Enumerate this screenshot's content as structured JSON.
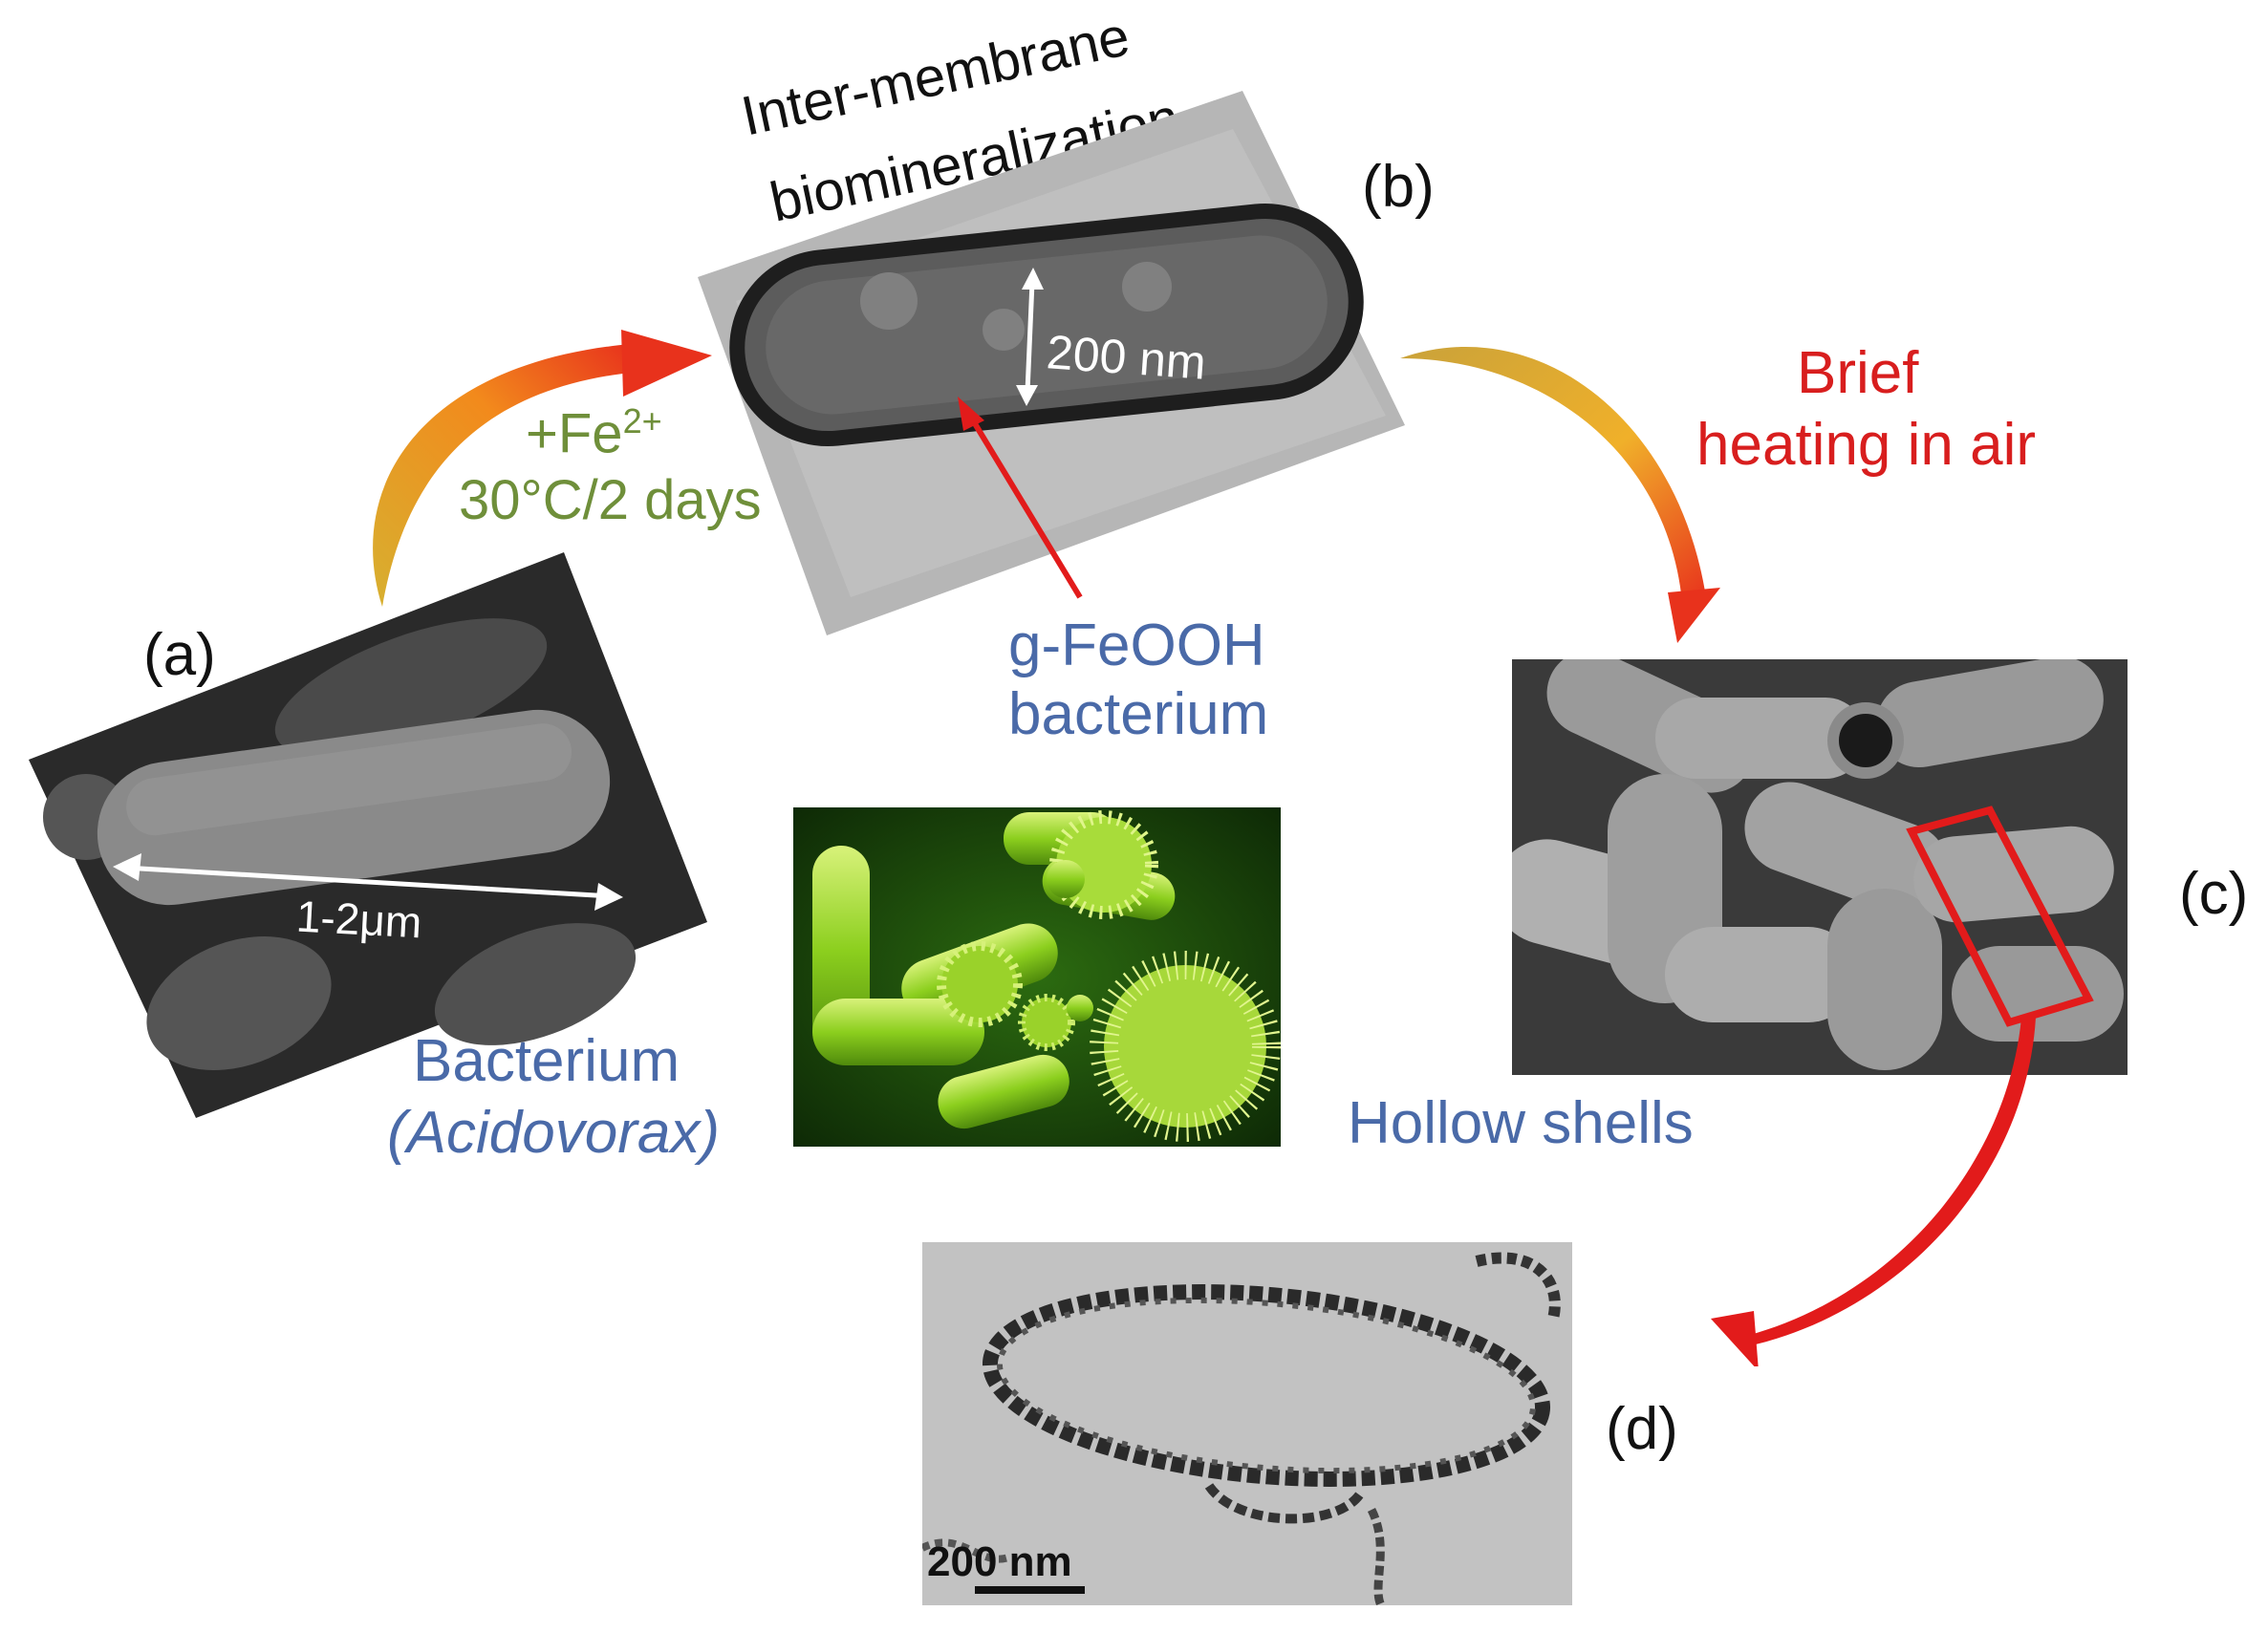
{
  "panels": {
    "a": {
      "label": "(a)",
      "scale": "1-2μm",
      "title": "Bacterium",
      "subtitle": "(Acidovorax)"
    },
    "b": {
      "label": "(b)",
      "process": [
        "Inter-membrane",
        "biomineralization"
      ],
      "scale": "200 nm",
      "product": [
        "g-FeOOH",
        "bacterium"
      ]
    },
    "c": {
      "label": "(c)",
      "caption": "Hollow shells"
    },
    "d": {
      "label": "(d)",
      "scale": "200 nm"
    }
  },
  "step_fe": {
    "reagent_base": "+Fe",
    "reagent_sup": "2+",
    "conditions": "30°C/2 days"
  },
  "step_heat": {
    "line1": "Brief",
    "line2": "heating in air"
  },
  "colors": {
    "blue": "#4a6aa8",
    "green": "#6f8f3a",
    "red": "#d81e1e",
    "bacteria_green": "#8ccf1e"
  }
}
